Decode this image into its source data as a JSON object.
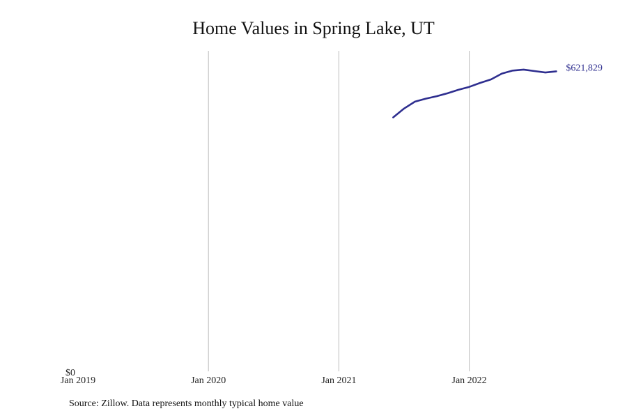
{
  "chart_data": {
    "type": "line",
    "title": "Home Values in Spring Lake, UT",
    "xlabel": "",
    "ylabel": "",
    "x_ticks": [
      "Jan 2019",
      "Jan 2020",
      "Jan 2021",
      "Jan 2022"
    ],
    "y_ticks": [
      "$0"
    ],
    "ylim": [
      0,
      650000
    ],
    "xlim": [
      "2019-01",
      "2022-10"
    ],
    "grid": "vertical",
    "colors": {
      "line": "#2e2e8f",
      "grid": "#bbbbbb"
    },
    "series": [
      {
        "x": [
          "2021-06",
          "2021-07",
          "2021-08",
          "2021-09",
          "2021-10",
          "2021-11",
          "2021-12",
          "2022-01",
          "2022-02",
          "2022-03",
          "2022-04",
          "2022-05",
          "2022-06",
          "2022-07",
          "2022-08",
          "2022-09"
        ],
        "values": [
          515000,
          533000,
          547000,
          553000,
          558000,
          564000,
          571000,
          577000,
          585000,
          592000,
          604000,
          610000,
          612000,
          609000,
          606000,
          608500
        ]
      }
    ],
    "end_label": "$621,829"
  },
  "source": "Source: Zillow. Data represents monthly typical home value"
}
